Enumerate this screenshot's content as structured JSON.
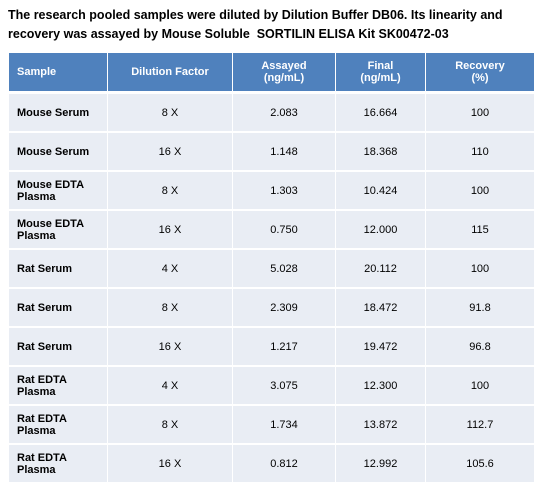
{
  "header": {
    "title": [
      "The research pooled samples were diluted by Dilution Buffer DB06. Its linearity and",
      "recovery was assayed by Mouse Soluble  SORTILIN ELISA Kit SK00472-03"
    ]
  },
  "table": {
    "columns": [
      "Sample",
      "Dilution Factor",
      "Assayed\n(ng/mL)",
      "Final\n(ng/mL)",
      "Recovery\n(%)"
    ],
    "rows": [
      [
        "Mouse Serum",
        "8 X",
        "2.083",
        "16.664",
        "100"
      ],
      [
        "Mouse Serum",
        "16 X",
        "1.148",
        "18.368",
        "110"
      ],
      [
        "Mouse EDTA Plasma",
        "8 X",
        "1.303",
        "10.424",
        "100"
      ],
      [
        "Mouse EDTA Plasma",
        "16 X",
        "0.750",
        "12.000",
        "115"
      ],
      [
        "Rat Serum",
        "4 X",
        "5.028",
        "20.112",
        "100"
      ],
      [
        "Rat Serum",
        "8 X",
        "2.309",
        "18.472",
        "91.8"
      ],
      [
        "Rat Serum",
        "16 X",
        "1.217",
        "19.472",
        "96.8"
      ],
      [
        "Rat EDTA Plasma",
        "4 X",
        "3.075",
        "12.300",
        "100"
      ],
      [
        "Rat EDTA Plasma",
        "8 X",
        "1.734",
        "13.872",
        "112.7"
      ],
      [
        "Rat EDTA Plasma",
        "16 X",
        "0.812",
        "12.992",
        "105.6"
      ]
    ]
  }
}
